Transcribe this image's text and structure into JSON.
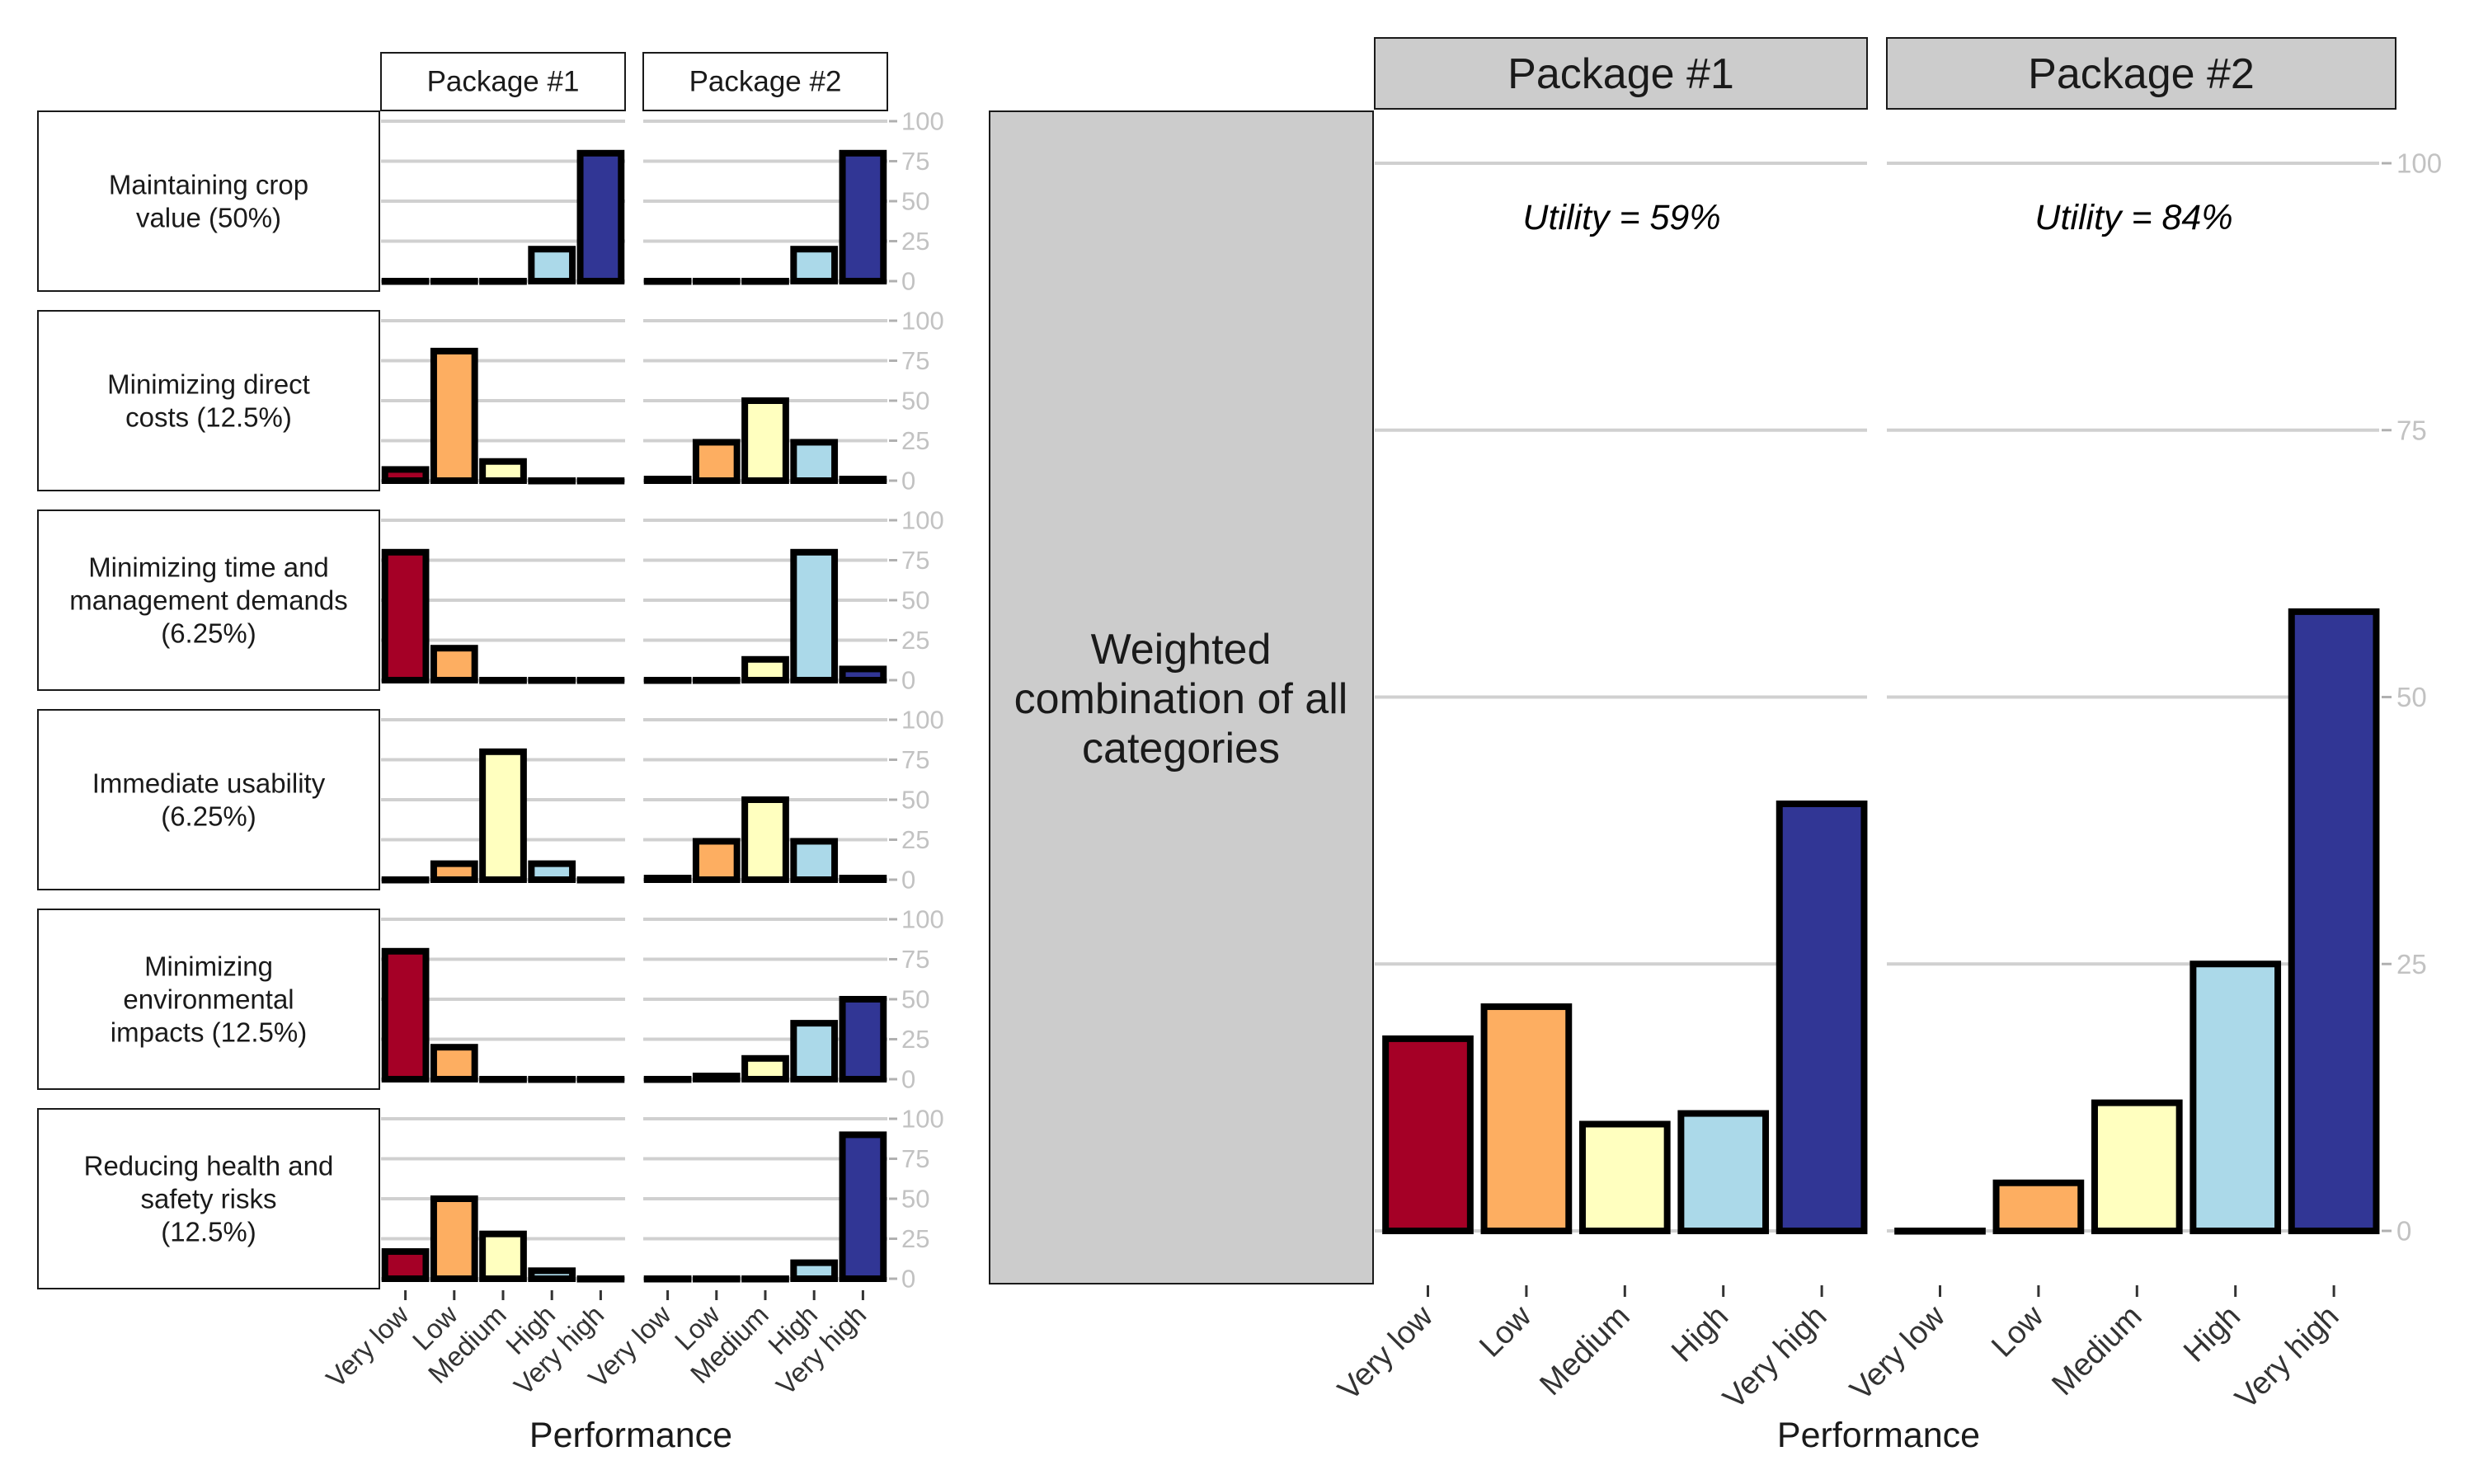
{
  "chart_data": [
    {
      "type": "bar",
      "name": "criteria-panels",
      "categories": [
        "Very low",
        "Low",
        "Medium",
        "High",
        "Very high"
      ],
      "xlabel": "Performance",
      "ylim": [
        0,
        100
      ],
      "yticks": [
        "0",
        "25",
        "50",
        "75",
        "100"
      ],
      "columns": [
        "Package #1",
        "Package #2"
      ],
      "rows": [
        {
          "label_lines": [
            "Maintaining crop",
            "value (50%)"
          ],
          "package1": [
            0,
            0,
            0,
            20,
            80
          ],
          "package2": [
            0,
            0,
            0,
            20,
            80
          ]
        },
        {
          "label_lines": [
            "Minimizing direct",
            "costs (12.5%)"
          ],
          "package1": [
            7,
            81,
            12,
            0,
            0
          ],
          "package2": [
            1,
            24,
            50,
            24,
            1
          ]
        },
        {
          "label_lines": [
            "Minimizing time and",
            "management demands",
            "(6.25%)"
          ],
          "package1": [
            80,
            20,
            0,
            0,
            0
          ],
          "package2": [
            0,
            0,
            13,
            80,
            7
          ]
        },
        {
          "label_lines": [
            "Immediate usability",
            "(6.25%)"
          ],
          "package1": [
            0,
            10,
            80,
            10,
            0
          ],
          "package2": [
            1,
            24,
            50,
            24,
            1
          ]
        },
        {
          "label_lines": [
            "Minimizing",
            "environmental",
            "impacts (12.5%)"
          ],
          "package1": [
            80,
            20,
            0,
            0,
            0
          ],
          "package2": [
            0,
            2,
            13,
            35,
            50
          ]
        },
        {
          "label_lines": [
            "Reducing health and",
            "safety risks",
            "(12.5%)"
          ],
          "package1": [
            17,
            50,
            28,
            5,
            0
          ],
          "package2": [
            0,
            0,
            0,
            10,
            90
          ]
        }
      ]
    },
    {
      "type": "bar",
      "name": "weighted-combination",
      "label_lines": [
        "Weighted",
        "combination of all",
        "categories"
      ],
      "categories": [
        "Very low",
        "Low",
        "Medium",
        "High",
        "Very high"
      ],
      "xlabel": "Performance",
      "ylim": [
        0,
        100
      ],
      "yticks": [
        "0",
        "25",
        "50",
        "75",
        "100"
      ],
      "series": [
        {
          "name": "Package #1",
          "utility": "Utility = 59%",
          "values": [
            18,
            21,
            10,
            11,
            40
          ]
        },
        {
          "name": "Package #2",
          "utility": "Utility = 84%",
          "values": [
            0,
            4.5,
            12,
            25,
            58
          ]
        }
      ]
    }
  ],
  "colors": {
    "Very low": "#a50026",
    "Low": "#fdae61",
    "Medium": "#ffffbf",
    "High": "#abd9e9",
    "Very high": "#313695"
  }
}
